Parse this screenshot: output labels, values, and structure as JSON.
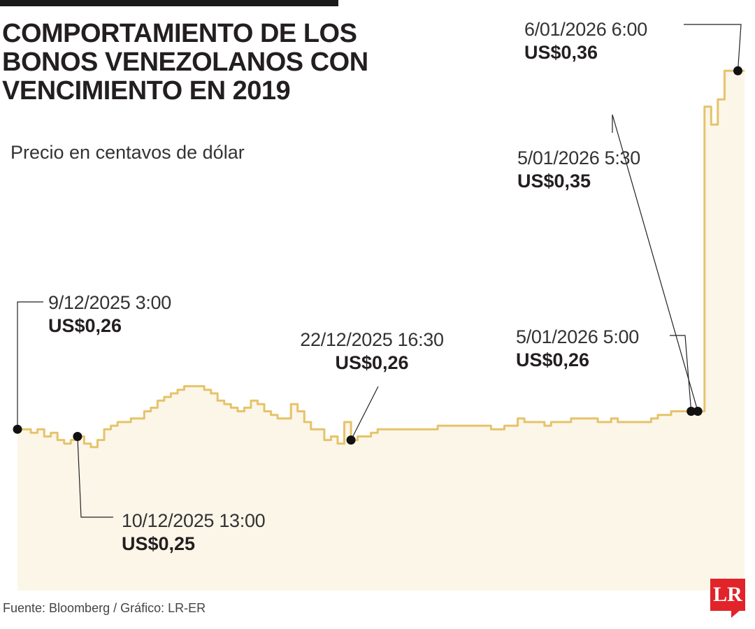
{
  "title_lines": [
    "COMPORTAMIENTO DE LOS",
    "BONOS VENEZOLANOS CON",
    "VENCIMIENTO EN 2019"
  ],
  "subtitle": "Precio en centavos de dólar",
  "source": "Fuente: Bloomberg / Gráfico: LR-ER",
  "logo_text": "LR",
  "colors": {
    "line": "#e6c36a",
    "area": "#fcf6e9",
    "marker": "#111111",
    "logo": "#e0242a"
  },
  "annotations": [
    {
      "date": "9/12/2025 3:00",
      "value": "US$0,26"
    },
    {
      "date": "10/12/2025 13:00",
      "value": "US$0,25"
    },
    {
      "date": "22/12/2025 16:30",
      "value": "US$0,26"
    },
    {
      "date": "5/01/2026 5:00",
      "value": "US$0,26"
    },
    {
      "date": "5/01/2026 5:30",
      "value": "US$0,35"
    },
    {
      "date": "6/01/2026 6:00",
      "value": "US$0,36"
    }
  ],
  "chart_data": {
    "type": "area",
    "x_start": "9/12/2025 3:00",
    "x_end": "6/01/2026 6:00",
    "ylim": [
      0.215,
      0.37
    ],
    "grid": false,
    "values": [
      0.26,
      0.26,
      0.259,
      0.26,
      0.258,
      0.259,
      0.257,
      0.256,
      0.257,
      0.258,
      0.256,
      0.255,
      0.257,
      0.26,
      0.261,
      0.262,
      0.262,
      0.263,
      0.263,
      0.265,
      0.266,
      0.268,
      0.269,
      0.27,
      0.271,
      0.272,
      0.272,
      0.272,
      0.271,
      0.27,
      0.268,
      0.267,
      0.266,
      0.265,
      0.266,
      0.268,
      0.267,
      0.265,
      0.264,
      0.263,
      0.263,
      0.267,
      0.265,
      0.262,
      0.26,
      0.26,
      0.257,
      0.258,
      0.256,
      0.262,
      0.257,
      0.258,
      0.258,
      0.259,
      0.26,
      0.26,
      0.26,
      0.26,
      0.26,
      0.26,
      0.26,
      0.26,
      0.26,
      0.261,
      0.261,
      0.261,
      0.261,
      0.261,
      0.261,
      0.261,
      0.261,
      0.26,
      0.26,
      0.261,
      0.261,
      0.263,
      0.262,
      0.262,
      0.262,
      0.261,
      0.262,
      0.262,
      0.262,
      0.263,
      0.263,
      0.263,
      0.263,
      0.262,
      0.262,
      0.263,
      0.262,
      0.262,
      0.262,
      0.262,
      0.262,
      0.263,
      0.264,
      0.264,
      0.265,
      0.265,
      0.265,
      0.265,
      0.265,
      0.35,
      0.345,
      0.352,
      0.36,
      0.36,
      0.36,
      0.36
    ]
  }
}
